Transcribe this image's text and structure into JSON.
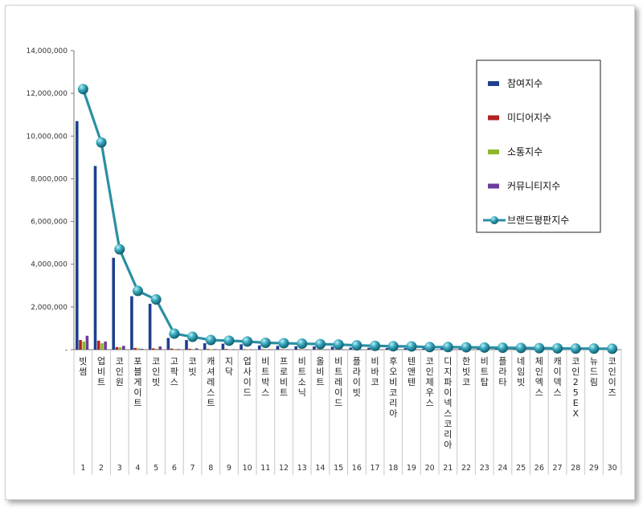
{
  "chart_data": {
    "type": "bar",
    "categories": [
      "빗썸",
      "업비트",
      "코인원",
      "포블게이트",
      "코인빗",
      "고팍스",
      "코빗",
      "캐셔레스트",
      "지닥",
      "업사이드",
      "비트박스",
      "프로비트",
      "비트소닉",
      "올비트",
      "비트레이드",
      "플라이빗",
      "비바코",
      "후오비코리아",
      "텐앤텐",
      "코인제우스",
      "디지파이넥스코리아",
      "한빗코",
      "비트탑",
      "플라타",
      "네임빗",
      "체인엑스",
      "캐이덱스",
      "코인25EX",
      "뉴드림",
      "코인이즈"
    ],
    "numbers": [
      "1",
      "2",
      "3",
      "4",
      "5",
      "6",
      "7",
      "8",
      "9",
      "10",
      "11",
      "12",
      "13",
      "14",
      "15",
      "16",
      "17",
      "18",
      "19",
      "20",
      "21",
      "22",
      "23",
      "24",
      "25",
      "26",
      "27",
      "28",
      "29",
      "30"
    ],
    "ylim": [
      0,
      14000000
    ],
    "yticks": [
      "-",
      "2,000,000",
      "4,000,000",
      "6,000,000",
      "8,000,000",
      "10,000,000",
      "12,000,000",
      "14,000,000"
    ],
    "series": [
      {
        "name": "참여지수",
        "kind": "bar",
        "color": "#1f3f8f",
        "values": [
          10700000,
          8600000,
          4300000,
          2500000,
          2150000,
          550000,
          450000,
          300000,
          280000,
          250000,
          200000,
          180000,
          160000,
          150000,
          140000,
          100000,
          90000,
          80000,
          70000,
          60000,
          60000,
          50000,
          50000,
          40000,
          40000,
          30000,
          30000,
          20000,
          20000,
          20000
        ]
      },
      {
        "name": "미디어지수",
        "kind": "bar",
        "color": "#b22222",
        "values": [
          450000,
          420000,
          120000,
          80000,
          60000,
          50000,
          40000,
          30000,
          30000,
          20000,
          20000,
          20000,
          20000,
          15000,
          15000,
          10000,
          10000,
          10000,
          10000,
          10000,
          10000,
          8000,
          8000,
          8000,
          8000,
          6000,
          6000,
          5000,
          5000,
          5000
        ]
      },
      {
        "name": "소통지수",
        "kind": "bar",
        "color": "#8fb52a",
        "values": [
          380000,
          300000,
          110000,
          60000,
          40000,
          30000,
          25000,
          20000,
          20000,
          15000,
          15000,
          12000,
          12000,
          10000,
          10000,
          8000,
          8000,
          6000,
          6000,
          5000,
          5000,
          4000,
          4000,
          4000,
          3000,
          3000,
          3000,
          2000,
          2000,
          2000
        ]
      },
      {
        "name": "커뮤니티지수",
        "kind": "bar",
        "color": "#6a3d9a",
        "values": [
          650000,
          380000,
          180000,
          40000,
          150000,
          30000,
          60000,
          25000,
          20000,
          15000,
          15000,
          12000,
          10000,
          10000,
          10000,
          8000,
          8000,
          6000,
          6000,
          5000,
          5000,
          4000,
          4000,
          3000,
          3000,
          3000,
          2000,
          2000,
          2000,
          2000
        ]
      },
      {
        "name": "브랜드평판지수",
        "kind": "line",
        "color": "#2a8fa3",
        "values": [
          12200000,
          9700000,
          4700000,
          2750000,
          2350000,
          750000,
          600000,
          450000,
          420000,
          380000,
          320000,
          300000,
          280000,
          260000,
          240000,
          200000,
          180000,
          160000,
          150000,
          120000,
          120000,
          110000,
          100000,
          90000,
          80000,
          70000,
          60000,
          50000,
          50000,
          40000
        ]
      }
    ],
    "legend_position": "top-right",
    "grid": false
  }
}
